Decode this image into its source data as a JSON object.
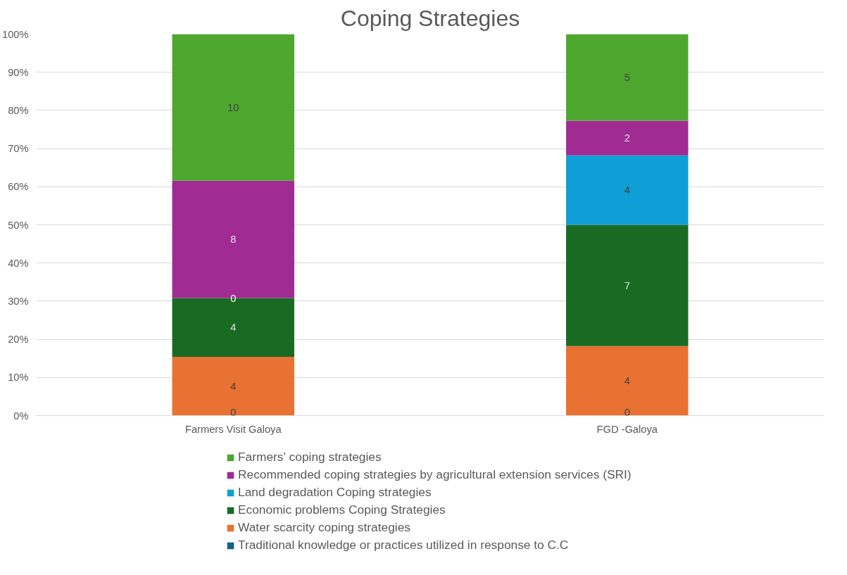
{
  "chart_data": {
    "type": "bar",
    "title": "Coping Strategies",
    "categories": [
      "Farmers Visit Galoya",
      "FGD -Galoya"
    ],
    "stacked": true,
    "ylim": [
      0,
      100
    ],
    "yticks": [
      {
        "value": 0,
        "label": "0%"
      },
      {
        "value": 10,
        "label": "10%"
      },
      {
        "value": 20,
        "label": "20%"
      },
      {
        "value": 30,
        "label": "30%"
      },
      {
        "value": 40,
        "label": "40%"
      },
      {
        "value": 50,
        "label": "50%"
      },
      {
        "value": 60,
        "label": "60%"
      },
      {
        "value": 70,
        "label": "70%"
      },
      {
        "value": 80,
        "label": "80%"
      },
      {
        "value": 90,
        "label": "90%"
      },
      {
        "value": 100,
        "label": "100%"
      }
    ],
    "grid": "y",
    "legend": "bottom",
    "series": [
      {
        "name": "Traditional knowledge or practices utilized in response to C.C",
        "color": "#156082",
        "values": [
          0,
          0
        ]
      },
      {
        "name": "Water scarcity coping strategies",
        "color": "#e97132",
        "values": [
          15.4,
          18.2
        ]
      },
      {
        "name": "Economic problems Coping Strategies",
        "color": "#196b24",
        "values": [
          15.4,
          31.8
        ]
      },
      {
        "name": "Land degradation Coping strategies",
        "color": "#0f9ed5",
        "values": [
          0,
          18.2
        ]
      },
      {
        "name": "Recommended coping strategies by agricultural extension services (SRI)",
        "color": "#a02b93",
        "values": [
          30.8,
          9.1
        ]
      },
      {
        "name": "Farmers' coping strategies",
        "color": "#4ea72e",
        "values": [
          38.4,
          22.7
        ]
      }
    ],
    "annotations": [
      "0",
      "4",
      "4",
      "0",
      "8",
      "10",
      "0",
      "4",
      "7",
      "4",
      "2",
      "5"
    ]
  }
}
